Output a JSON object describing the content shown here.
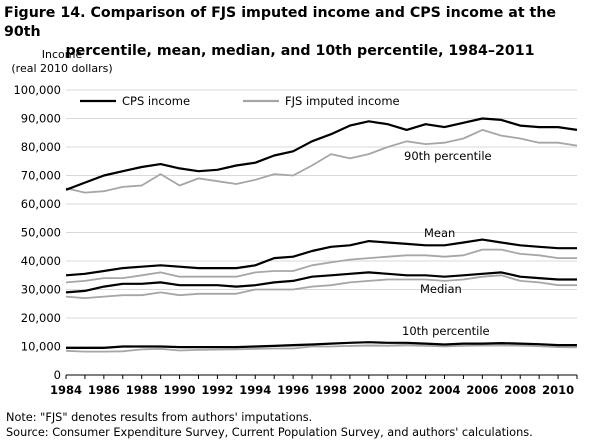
{
  "title_line1": "Figure 14. Comparison of FJS imputed income and CPS income at the 90th",
  "title_line2": "percentile, mean, median, and 10th percentile, 1984–2011",
  "ylabel_line1": "Income",
  "ylabel_line2": "(real 2010 dollars)",
  "note": "Note: \"FJS\" denotes results from authors' imputations.",
  "source": "Source: Consumer Expenditure  Survey, Current Population  Survey, and authors'  calculations.",
  "colors": {
    "cps": "#000000",
    "fjs": "#a6a6a6",
    "grid": "#d9d9d9",
    "axis": "#000000"
  },
  "chart_data": {
    "type": "line",
    "x": [
      1984,
      1985,
      1986,
      1987,
      1988,
      1989,
      1990,
      1991,
      1992,
      1993,
      1994,
      1995,
      1996,
      1997,
      1998,
      1999,
      2000,
      2001,
      2002,
      2003,
      2004,
      2005,
      2006,
      2007,
      2008,
      2009,
      2010,
      2011
    ],
    "x_ticks": [
      "1984",
      "1986",
      "1988",
      "1990",
      "1992",
      "1994",
      "1996",
      "1998",
      "2000",
      "2002",
      "2004",
      "2006",
      "2008",
      "2010"
    ],
    "y_ticks": [
      "0",
      "10,000",
      "20,000",
      "30,000",
      "40,000",
      "50,000",
      "60,000",
      "70,000",
      "80,000",
      "90,000",
      "100,000"
    ],
    "ylim": [
      0,
      100000
    ],
    "xlim": [
      1984,
      2011
    ],
    "grid": "horizontal",
    "legend": [
      {
        "label": "CPS income",
        "key": "cps"
      },
      {
        "label": "FJS imputed income",
        "key": "fjs"
      }
    ],
    "annotations": [
      "90th percentile",
      "Mean",
      "Median",
      "10th percentile"
    ],
    "series": [
      {
        "group": "90th percentile",
        "key": "cps",
        "values": [
          65000,
          67500,
          70000,
          71500,
          73000,
          74000,
          72500,
          71500,
          72000,
          73500,
          74500,
          77000,
          78500,
          82000,
          84500,
          87500,
          89000,
          88000,
          86000,
          88000,
          87000,
          88500,
          90000,
          89500,
          87500,
          87000,
          87000,
          86000
        ]
      },
      {
        "group": "90th percentile",
        "key": "fjs",
        "values": [
          65500,
          64000,
          64500,
          66000,
          66500,
          70500,
          66500,
          69000,
          68000,
          67000,
          68500,
          70500,
          70000,
          73500,
          77500,
          76000,
          77500,
          80000,
          82000,
          81000,
          81500,
          83000,
          86000,
          84000,
          83000,
          81500,
          81500,
          80500
        ]
      },
      {
        "group": "Mean",
        "key": "cps",
        "values": [
          35000,
          35500,
          36500,
          37500,
          38000,
          38500,
          38000,
          37500,
          37500,
          37500,
          38500,
          41000,
          41500,
          43500,
          45000,
          45500,
          47000,
          46500,
          46000,
          45500,
          45500,
          46500,
          47500,
          46500,
          45500,
          45000,
          44500,
          44500
        ]
      },
      {
        "group": "Mean",
        "key": "fjs",
        "values": [
          32500,
          33000,
          34000,
          34000,
          35000,
          36000,
          34500,
          34500,
          34500,
          34500,
          36000,
          36500,
          36500,
          38500,
          39500,
          40500,
          41000,
          41500,
          42000,
          42000,
          41500,
          42000,
          44000,
          44000,
          42500,
          42000,
          41000,
          41000
        ]
      },
      {
        "group": "Median",
        "key": "cps",
        "values": [
          29000,
          29500,
          31000,
          32000,
          32000,
          32500,
          31500,
          31500,
          31500,
          31000,
          31500,
          32500,
          33000,
          34500,
          35000,
          35500,
          36000,
          35500,
          35000,
          35000,
          34500,
          35000,
          35500,
          36000,
          34500,
          34000,
          33500,
          33500
        ]
      },
      {
        "group": "Median",
        "key": "fjs",
        "values": [
          27500,
          27000,
          27500,
          28000,
          28000,
          29000,
          28000,
          28500,
          28500,
          28500,
          30000,
          30000,
          30000,
          31000,
          31500,
          32500,
          33000,
          33500,
          33500,
          33500,
          33000,
          33500,
          34500,
          35000,
          33000,
          32500,
          31500,
          31500
        ]
      },
      {
        "group": "10th percentile",
        "key": "cps",
        "values": [
          9500,
          9500,
          9500,
          10000,
          10000,
          10000,
          9800,
          9800,
          9800,
          9800,
          10000,
          10200,
          10500,
          10700,
          11000,
          11300,
          11500,
          11300,
          11300,
          11000,
          10700,
          11000,
          11000,
          11200,
          11000,
          10800,
          10500,
          10500
        ]
      },
      {
        "group": "10th percentile",
        "key": "fjs",
        "values": [
          8500,
          8200,
          8200,
          8300,
          9000,
          9200,
          8600,
          8800,
          8900,
          9000,
          9200,
          9300,
          9300,
          10000,
          10000,
          10200,
          10400,
          10300,
          10600,
          10300,
          10000,
          10300,
          10500,
          10600,
          10400,
          10100,
          9800,
          9700
        ]
      }
    ]
  }
}
